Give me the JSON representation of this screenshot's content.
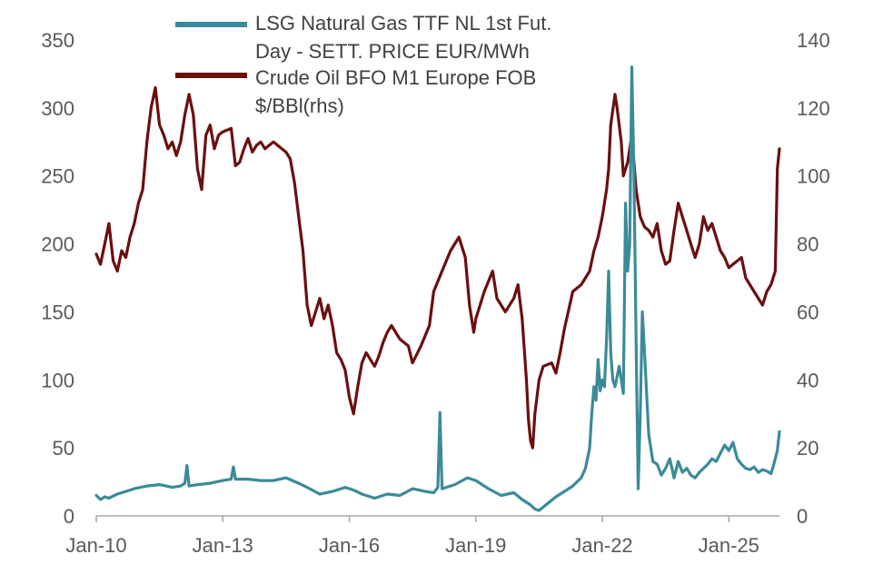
{
  "chart_data": {
    "type": "line",
    "title": "",
    "xlabel": "",
    "ylabel_left": "",
    "ylabel_right": "",
    "x_ticks": [
      "Jan-10",
      "Jan-13",
      "Jan-16",
      "Jan-19",
      "Jan-22",
      "Jan-25"
    ],
    "x_tick_years": [
      2010,
      2013,
      2016,
      2019,
      2022,
      2025
    ],
    "x_range": [
      2010.0,
      2026.2
    ],
    "y_left_ticks": [
      "0",
      "50",
      "100",
      "150",
      "200",
      "250",
      "300",
      "350"
    ],
    "y_left_range": [
      0,
      350
    ],
    "y_right_ticks": [
      "0",
      "20",
      "40",
      "60",
      "80",
      "100",
      "120",
      "140"
    ],
    "y_right_range": [
      0,
      140
    ],
    "legend": {
      "position": "top-center",
      "entries": [
        {
          "line1": "LSG Natural Gas TTF NL 1st Fut.",
          "line2": "Day - SETT. PRICE EUR/MWh",
          "color": "#3b8a9a"
        },
        {
          "line1": "Crude Oil BFO M1 Europe FOB",
          "line2": "$/BBl(rhs)",
          "color": "#6b0f0f"
        }
      ]
    },
    "series": [
      {
        "name": "LSG Natural Gas TTF NL 1st Fut. Day - SETT. PRICE EUR/MWh",
        "axis": "left",
        "color": "#3b8a9a",
        "x": [
          2010.0,
          2010.1,
          2010.2,
          2010.3,
          2010.5,
          2010.7,
          2010.9,
          2011.2,
          2011.5,
          2011.8,
          2012.0,
          2012.1,
          2012.15,
          2012.2,
          2012.4,
          2012.7,
          2013.0,
          2013.2,
          2013.25,
          2013.3,
          2013.6,
          2013.9,
          2014.2,
          2014.5,
          2014.8,
          2015.0,
          2015.3,
          2015.6,
          2015.9,
          2016.1,
          2016.3,
          2016.6,
          2016.9,
          2017.2,
          2017.5,
          2017.8,
          2018.0,
          2018.1,
          2018.15,
          2018.2,
          2018.5,
          2018.8,
          2019.0,
          2019.3,
          2019.6,
          2019.9,
          2020.1,
          2020.3,
          2020.4,
          2020.5,
          2020.7,
          2020.9,
          2021.1,
          2021.3,
          2021.5,
          2021.6,
          2021.7,
          2021.75,
          2021.8,
          2021.85,
          2021.9,
          2021.95,
          2022.0,
          2022.05,
          2022.1,
          2022.15,
          2022.2,
          2022.25,
          2022.3,
          2022.4,
          2022.5,
          2022.55,
          2022.6,
          2022.65,
          2022.7,
          2022.75,
          2022.8,
          2022.85,
          2022.9,
          2022.95,
          2023.0,
          2023.1,
          2023.2,
          2023.3,
          2023.4,
          2023.5,
          2023.6,
          2023.7,
          2023.8,
          2023.9,
          2024.0,
          2024.1,
          2024.2,
          2024.3,
          2024.4,
          2024.5,
          2024.6,
          2024.7,
          2024.8,
          2024.9,
          2025.0,
          2025.1,
          2025.2,
          2025.3,
          2025.4,
          2025.5,
          2025.6,
          2025.7,
          2025.8,
          2025.9,
          2026.0,
          2026.05,
          2026.1,
          2026.15,
          2026.2
        ],
        "values": [
          15,
          12,
          14,
          13,
          16,
          18,
          20,
          22,
          23,
          21,
          22,
          24,
          37,
          22,
          23,
          24,
          26,
          27,
          36,
          27,
          27,
          26,
          26,
          28,
          24,
          21,
          16,
          18,
          21,
          19,
          16,
          13,
          16,
          15,
          20,
          18,
          17,
          21,
          76,
          20,
          23,
          28,
          26,
          20,
          15,
          17,
          12,
          8,
          5,
          4,
          9,
          14,
          18,
          22,
          28,
          35,
          50,
          75,
          95,
          85,
          115,
          92,
          100,
          95,
          130,
          180,
          120,
          100,
          95,
          110,
          90,
          230,
          180,
          200,
          330,
          250,
          130,
          20,
          75,
          150,
          120,
          60,
          40,
          38,
          30,
          35,
          42,
          28,
          40,
          32,
          35,
          30,
          28,
          32,
          35,
          38,
          42,
          40,
          46,
          52,
          48,
          54,
          42,
          38,
          35,
          34,
          36,
          32,
          34,
          33,
          31,
          36,
          42,
          48,
          62
        ]
      },
      {
        "name": "Crude Oil BFO M1 Europe FOB $/BBl(rhs)",
        "axis": "right",
        "color": "#6b0f0f",
        "x": [
          2010.0,
          2010.1,
          2010.2,
          2010.3,
          2010.4,
          2010.5,
          2010.6,
          2010.7,
          2010.8,
          2010.9,
          2011.0,
          2011.1,
          2011.2,
          2011.3,
          2011.4,
          2011.5,
          2011.6,
          2011.7,
          2011.8,
          2011.9,
          2012.0,
          2012.1,
          2012.2,
          2012.3,
          2012.4,
          2012.5,
          2012.6,
          2012.7,
          2012.8,
          2012.9,
          2013.0,
          2013.2,
          2013.3,
          2013.4,
          2013.5,
          2013.6,
          2013.7,
          2013.8,
          2013.9,
          2014.0,
          2014.2,
          2014.4,
          2014.5,
          2014.6,
          2014.7,
          2014.8,
          2014.9,
          2015.0,
          2015.1,
          2015.2,
          2015.3,
          2015.4,
          2015.5,
          2015.6,
          2015.7,
          2015.8,
          2015.9,
          2016.0,
          2016.1,
          2016.2,
          2016.3,
          2016.4,
          2016.5,
          2016.6,
          2016.7,
          2016.8,
          2016.9,
          2017.0,
          2017.2,
          2017.4,
          2017.5,
          2017.7,
          2017.9,
          2018.0,
          2018.2,
          2018.4,
          2018.6,
          2018.75,
          2018.85,
          2018.95,
          2019.0,
          2019.2,
          2019.4,
          2019.5,
          2019.7,
          2019.8,
          2019.9,
          2020.0,
          2020.1,
          2020.2,
          2020.25,
          2020.3,
          2020.35,
          2020.4,
          2020.5,
          2020.6,
          2020.8,
          2020.9,
          2021.0,
          2021.1,
          2021.3,
          2021.5,
          2021.7,
          2021.8,
          2021.9,
          2022.0,
          2022.1,
          2022.15,
          2022.2,
          2022.3,
          2022.35,
          2022.45,
          2022.5,
          2022.6,
          2022.7,
          2022.8,
          2022.9,
          2023.0,
          2023.1,
          2023.2,
          2023.3,
          2023.4,
          2023.5,
          2023.6,
          2023.7,
          2023.8,
          2023.9,
          2024.0,
          2024.1,
          2024.2,
          2024.3,
          2024.4,
          2024.5,
          2024.6,
          2024.7,
          2024.8,
          2024.9,
          2025.0,
          2025.1,
          2025.2,
          2025.3,
          2025.4,
          2025.5,
          2025.6,
          2025.7,
          2025.8,
          2025.9,
          2026.0,
          2026.1,
          2026.15,
          2026.2
        ],
        "values": [
          77,
          74,
          80,
          86,
          75,
          72,
          78,
          76,
          82,
          86,
          92,
          96,
          110,
          120,
          126,
          115,
          112,
          108,
          110,
          106,
          110,
          118,
          124,
          118,
          102,
          96,
          112,
          115,
          108,
          112,
          113,
          114,
          103,
          104,
          108,
          111,
          107,
          109,
          110,
          108,
          110,
          108,
          107,
          105,
          98,
          88,
          78,
          62,
          56,
          60,
          64,
          58,
          62,
          56,
          48,
          46,
          43,
          35,
          30,
          38,
          45,
          48,
          46,
          44,
          47,
          51,
          54,
          56,
          52,
          50,
          45,
          50,
          56,
          66,
          72,
          78,
          82,
          76,
          62,
          54,
          58,
          66,
          72,
          64,
          60,
          62,
          64,
          68,
          58,
          40,
          28,
          22,
          20,
          30,
          40,
          44,
          45,
          42,
          48,
          55,
          66,
          68,
          72,
          78,
          82,
          88,
          96,
          102,
          115,
          124,
          120,
          110,
          100,
          104,
          112,
          96,
          88,
          85,
          84,
          82,
          86,
          78,
          74,
          75,
          84,
          92,
          88,
          84,
          80,
          76,
          80,
          88,
          84,
          86,
          82,
          78,
          76,
          73,
          74,
          75,
          76,
          70,
          68,
          66,
          64,
          62,
          66,
          68,
          72,
          102,
          108
        ]
      }
    ]
  }
}
